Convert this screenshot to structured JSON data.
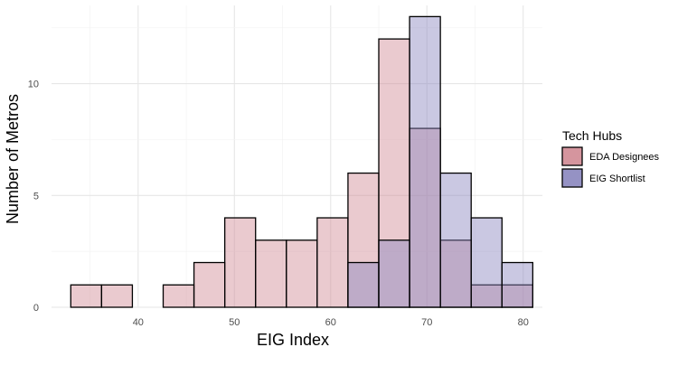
{
  "chart_data": {
    "type": "bar",
    "subtype": "overlapping-histogram",
    "xlabel": "EIG Index",
    "ylabel": "Number of Metros",
    "xlim": [
      31,
      82
    ],
    "ylim": [
      0,
      13.5
    ],
    "xticks": [
      40,
      50,
      60,
      70,
      80
    ],
    "yticks": [
      0,
      5,
      10
    ],
    "bin_edges": [
      33,
      36.2,
      39.4,
      42.6,
      45.8,
      49,
      52.2,
      55.4,
      58.6,
      61.8,
      65,
      68.2,
      71.4,
      74.6,
      77.8,
      81
    ],
    "grid": true,
    "legend": {
      "title": "Tech Hubs",
      "placement": "right"
    },
    "series": [
      {
        "name": "EDA Designees",
        "color": "#d08a94",
        "values": [
          1,
          1,
          0,
          1,
          2,
          4,
          3,
          3,
          4,
          6,
          12,
          8,
          3,
          1,
          1
        ]
      },
      {
        "name": "EIG Shortlist",
        "color": "#8a86be",
        "values": [
          0,
          0,
          0,
          0,
          0,
          0,
          0,
          0,
          0,
          2,
          3,
          13,
          6,
          4,
          2
        ]
      }
    ]
  }
}
